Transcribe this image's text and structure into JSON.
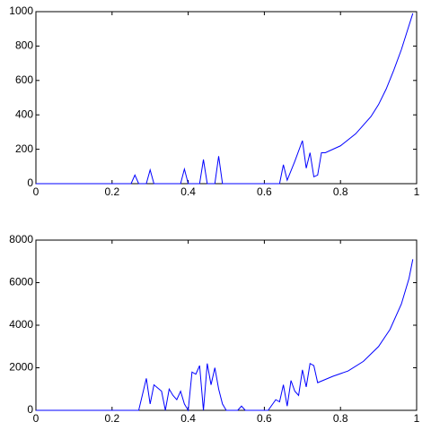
{
  "chart_data": [
    {
      "type": "line",
      "color": "#0000ff",
      "x": [
        0,
        0.25,
        0.26,
        0.27,
        0.29,
        0.3,
        0.31,
        0.38,
        0.39,
        0.4,
        0.43,
        0.44,
        0.45,
        0.47,
        0.48,
        0.49,
        0.64,
        0.65,
        0.66,
        0.68,
        0.7,
        0.71,
        0.72,
        0.73,
        0.74,
        0.75,
        0.76,
        0.8,
        0.84,
        0.88,
        0.9,
        0.92,
        0.94,
        0.96,
        0.98,
        0.99
      ],
      "values": [
        0,
        0,
        50,
        0,
        0,
        80,
        0,
        0,
        85,
        0,
        0,
        140,
        0,
        0,
        160,
        0,
        0,
        110,
        20,
        130,
        250,
        90,
        180,
        40,
        50,
        180,
        180,
        220,
        290,
        390,
        460,
        550,
        660,
        780,
        920,
        990
      ],
      "xlim": [
        0,
        1
      ],
      "xticks": [
        0,
        0.2,
        0.4,
        0.6,
        0.8,
        1
      ],
      "ylim": [
        0,
        1000
      ],
      "yticks": [
        0,
        200,
        400,
        600,
        800,
        1000
      ]
    },
    {
      "type": "line",
      "color": "#0000ff",
      "x": [
        0,
        0.27,
        0.29,
        0.3,
        0.31,
        0.33,
        0.34,
        0.35,
        0.36,
        0.37,
        0.38,
        0.39,
        0.4,
        0.41,
        0.42,
        0.43,
        0.44,
        0.45,
        0.46,
        0.47,
        0.48,
        0.49,
        0.5,
        0.53,
        0.54,
        0.55,
        0.61,
        0.63,
        0.64,
        0.65,
        0.66,
        0.67,
        0.68,
        0.69,
        0.7,
        0.71,
        0.72,
        0.73,
        0.74,
        0.78,
        0.82,
        0.86,
        0.9,
        0.93,
        0.96,
        0.98,
        0.99
      ],
      "values": [
        0,
        0,
        1500,
        300,
        1200,
        900,
        0,
        1000,
        700,
        500,
        900,
        300,
        0,
        1800,
        1700,
        2100,
        0,
        2200,
        1200,
        2000,
        1000,
        300,
        0,
        0,
        200,
        0,
        0,
        500,
        400,
        1200,
        200,
        1400,
        900,
        700,
        1900,
        1100,
        2200,
        2100,
        1300,
        1600,
        1850,
        2300,
        3000,
        3800,
        5000,
        6200,
        7100
      ],
      "xlim": [
        0,
        1
      ],
      "xticks": [
        0,
        0.2,
        0.4,
        0.6,
        0.8,
        1
      ],
      "ylim": [
        0,
        8000
      ],
      "yticks": [
        0,
        2000,
        4000,
        6000,
        8000
      ]
    }
  ]
}
